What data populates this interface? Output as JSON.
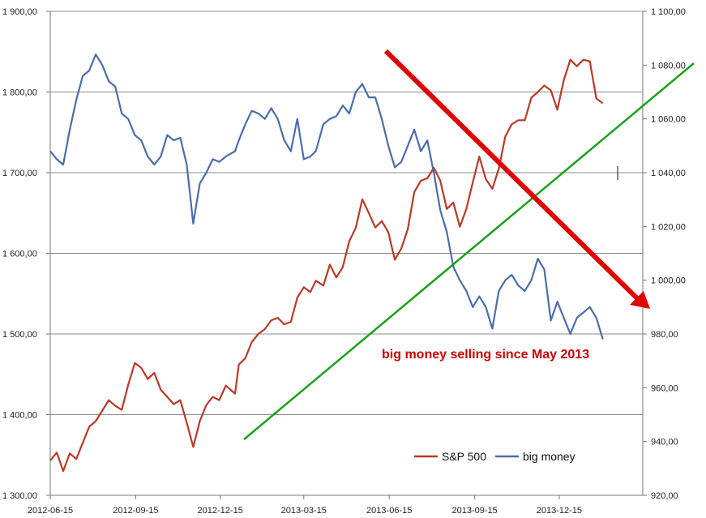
{
  "chart_data": {
    "type": "line",
    "title": "",
    "x_ticks": [
      "2012-06-15",
      "2012-09-15",
      "2012-12-15",
      "2013-03-15",
      "2013-06-15",
      "2013-09-15",
      "2013-12-15"
    ],
    "y_left": {
      "ticks": [
        "1 300,00",
        "1 400,00",
        "1 500,00",
        "1 600,00",
        "1 700,00",
        "1 800,00",
        "1 900,00"
      ],
      "ylim": [
        1300,
        1900
      ]
    },
    "y_right": {
      "ticks": [
        "920,00",
        "940,00",
        "960,00",
        "980,00",
        "1 000,00",
        "1 020,00",
        "1 040,00",
        "1 060,00",
        "1 080,00",
        "1 100,00"
      ],
      "ylim": [
        920,
        1100
      ]
    },
    "grid": "horizontal",
    "legend_position": "bottom-right",
    "series": [
      {
        "name": "S&P 500",
        "axis": "left",
        "color": "#b83a27",
        "x": [
          "2012-06-15",
          "2012-06-22",
          "2012-06-29",
          "2012-07-06",
          "2012-07-13",
          "2012-07-20",
          "2012-07-27",
          "2012-08-03",
          "2012-08-10",
          "2012-08-17",
          "2012-08-24",
          "2012-08-31",
          "2012-09-07",
          "2012-09-14",
          "2012-09-21",
          "2012-09-28",
          "2012-10-05",
          "2012-10-12",
          "2012-10-19",
          "2012-10-26",
          "2012-11-02",
          "2012-11-09",
          "2012-11-16",
          "2012-11-23",
          "2012-11-30",
          "2012-12-07",
          "2012-12-14",
          "2012-12-21",
          "2012-12-31",
          "2013-01-04",
          "2013-01-11",
          "2013-01-18",
          "2013-01-25",
          "2013-02-01",
          "2013-02-08",
          "2013-02-15",
          "2013-02-22",
          "2013-03-01",
          "2013-03-08",
          "2013-03-15",
          "2013-03-22",
          "2013-03-28",
          "2013-04-05",
          "2013-04-12",
          "2013-04-19",
          "2013-04-26",
          "2013-05-03",
          "2013-05-10",
          "2013-05-17",
          "2013-05-24",
          "2013-05-31",
          "2013-06-07",
          "2013-06-14",
          "2013-06-21",
          "2013-06-28",
          "2013-07-05",
          "2013-07-12",
          "2013-07-19",
          "2013-07-26",
          "2013-08-02",
          "2013-08-09",
          "2013-08-16",
          "2013-08-23",
          "2013-08-30",
          "2013-09-06",
          "2013-09-13",
          "2013-09-20",
          "2013-09-27",
          "2013-10-04",
          "2013-10-11",
          "2013-10-18",
          "2013-10-25",
          "2013-11-01",
          "2013-11-08",
          "2013-11-15",
          "2013-11-22",
          "2013-11-29",
          "2013-12-06",
          "2013-12-13",
          "2013-12-20",
          "2013-12-27",
          "2014-01-03",
          "2014-01-10",
          "2014-01-17",
          "2014-01-24",
          "2014-01-31"
        ],
        "values": [
          1343,
          1353,
          1330,
          1352,
          1345,
          1365,
          1385,
          1392,
          1405,
          1418,
          1411,
          1406,
          1437,
          1464,
          1458,
          1444,
          1452,
          1431,
          1422,
          1413,
          1418,
          1390,
          1360,
          1392,
          1412,
          1422,
          1418,
          1436,
          1426,
          1462,
          1470,
          1490,
          1500,
          1506,
          1517,
          1520,
          1512,
          1515,
          1545,
          1558,
          1552,
          1566,
          1560,
          1586,
          1570,
          1583,
          1615,
          1632,
          1667,
          1650,
          1632,
          1640,
          1626,
          1592,
          1606,
          1630,
          1676,
          1690,
          1693,
          1706,
          1690,
          1655,
          1663,
          1633,
          1655,
          1688,
          1720,
          1692,
          1680,
          1705,
          1745,
          1760,
          1765,
          1765,
          1793,
          1800,
          1808,
          1802,
          1778,
          1815,
          1840,
          1832,
          1840,
          1838,
          1792,
          1786
        ]
      },
      {
        "name": "big money",
        "axis": "right",
        "color": "#4a6ea9",
        "x": [
          "2012-06-15",
          "2012-06-22",
          "2012-06-29",
          "2012-07-06",
          "2012-07-13",
          "2012-07-20",
          "2012-07-27",
          "2012-08-03",
          "2012-08-10",
          "2012-08-17",
          "2012-08-24",
          "2012-08-31",
          "2012-09-07",
          "2012-09-14",
          "2012-09-21",
          "2012-09-28",
          "2012-10-05",
          "2012-10-12",
          "2012-10-19",
          "2012-10-26",
          "2012-11-02",
          "2012-11-09",
          "2012-11-16",
          "2012-11-23",
          "2012-11-30",
          "2012-12-07",
          "2012-12-14",
          "2012-12-21",
          "2012-12-31",
          "2013-01-04",
          "2013-01-11",
          "2013-01-18",
          "2013-01-25",
          "2013-02-01",
          "2013-02-08",
          "2013-02-15",
          "2013-02-22",
          "2013-03-01",
          "2013-03-08",
          "2013-03-15",
          "2013-03-22",
          "2013-03-28",
          "2013-04-05",
          "2013-04-12",
          "2013-04-19",
          "2013-04-26",
          "2013-05-03",
          "2013-05-10",
          "2013-05-17",
          "2013-05-24",
          "2013-05-31",
          "2013-06-07",
          "2013-06-14",
          "2013-06-21",
          "2013-06-28",
          "2013-07-05",
          "2013-07-12",
          "2013-07-19",
          "2013-07-26",
          "2013-08-02",
          "2013-08-09",
          "2013-08-16",
          "2013-08-23",
          "2013-08-30",
          "2013-09-06",
          "2013-09-13",
          "2013-09-20",
          "2013-09-27",
          "2013-10-04",
          "2013-10-11",
          "2013-10-18",
          "2013-10-25",
          "2013-11-01",
          "2013-11-08",
          "2013-11-15",
          "2013-11-22",
          "2013-11-29",
          "2013-12-06",
          "2013-12-13",
          "2013-12-20",
          "2013-12-27",
          "2014-01-03",
          "2014-01-10",
          "2014-01-17",
          "2014-01-24",
          "2014-01-31"
        ],
        "values": [
          1048,
          1045,
          1043,
          1056,
          1067,
          1076,
          1078,
          1084,
          1080,
          1074,
          1072,
          1062,
          1060,
          1054,
          1052,
          1046,
          1043,
          1046,
          1054,
          1052,
          1053,
          1043,
          1021,
          1036,
          1040,
          1045,
          1044,
          1046,
          1048,
          1052,
          1058,
          1063,
          1062,
          1060,
          1064,
          1060,
          1052,
          1048,
          1060,
          1045,
          1046,
          1048,
          1058,
          1060,
          1061,
          1065,
          1062,
          1070,
          1073,
          1068,
          1068,
          1060,
          1050,
          1042,
          1044,
          1050,
          1056,
          1048,
          1052,
          1040,
          1026,
          1018,
          1005,
          1000,
          996,
          990,
          994,
          990,
          982,
          996,
          1000,
          1002,
          998,
          996,
          1000,
          1008,
          1004,
          985,
          992,
          986,
          980,
          986,
          988,
          990,
          986,
          978
        ]
      }
    ],
    "annotation": "big money selling since May 2013",
    "colors": {
      "trend_up": "#1aa11a",
      "trend_down": "#e00000",
      "annotation": "#cc0000",
      "grid": "#8c8c8c",
      "axis": "#777777"
    }
  }
}
